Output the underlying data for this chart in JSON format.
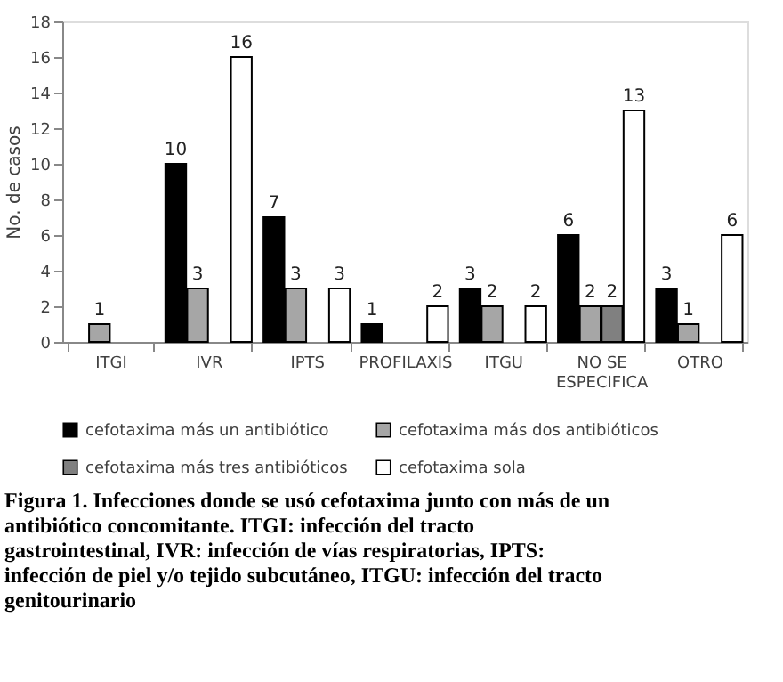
{
  "chart_data": {
    "type": "bar",
    "categories": [
      "ITGI",
      "IVR",
      "IPTS",
      "PROFILAXIS",
      "ITGU",
      "NO SE ESPECIFICA",
      "OTRO"
    ],
    "series": [
      {
        "name": "cefotaxima más un antibiótico",
        "color": "#000000",
        "values": [
          null,
          10,
          7,
          1,
          3,
          6,
          3
        ]
      },
      {
        "name": "cefotaxima más dos antibióticos",
        "color": "#a6a6a6",
        "values": [
          1,
          3,
          3,
          null,
          2,
          2,
          1
        ]
      },
      {
        "name": "cefotaxima más tres antibióticos",
        "color": "#808080",
        "values": [
          null,
          null,
          null,
          null,
          null,
          2,
          null
        ]
      },
      {
        "name": "cefotaxima sola",
        "color": "#ffffff",
        "values": [
          null,
          16,
          3,
          2,
          2,
          13,
          6
        ]
      }
    ],
    "ylabel": "No. de casos",
    "ylim": [
      0,
      18
    ],
    "yticks": [
      0,
      2,
      4,
      6,
      8,
      10,
      12,
      14,
      16,
      18
    ],
    "data_labels": true,
    "grid": false,
    "legend": "bottom",
    "annotations": [
      "Figura 1. Infecciones donde se usó cefotaxima junto con más de un antibiótico concomitante. ITGI: infección del tracto gastrointestinal, IVR: infección de vías respiratorias, IPTS: infección de piel y/o tejido subcutáneo, ITGU: infección del tracto genitourinario"
    ]
  }
}
